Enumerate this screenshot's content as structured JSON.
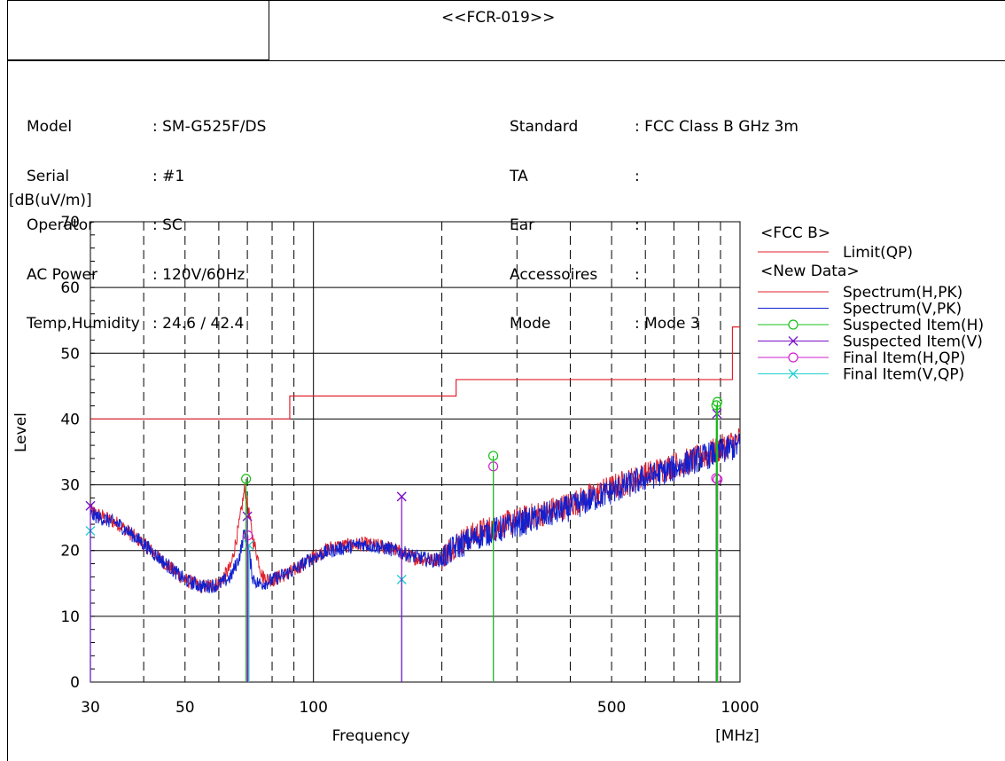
{
  "report_id": "<<FCR-019>>",
  "info_left": [
    {
      "label": "Model",
      "value": ": SM-G525F/DS"
    },
    {
      "label": "Serial",
      "value": ": #1"
    },
    {
      "label": "Operator",
      "value": ": SC"
    },
    {
      "label": "AC Power",
      "value": ": 120V/60Hz"
    },
    {
      "label": "Temp,Humidity",
      "value": ": 24.6 / 42.4"
    }
  ],
  "info_right": [
    {
      "label": "Standard",
      "value": ": FCC Class B GHz 3m"
    },
    {
      "label": "TA",
      "value": ":"
    },
    {
      "label": "Ear",
      "value": ":"
    },
    {
      "label": "Accessoires",
      "value": ":"
    },
    {
      "label": "Mode",
      "value": ": Mode 3"
    }
  ],
  "chart_data": {
    "type": "line",
    "xlabel": "Frequency",
    "xunit": "[MHz]",
    "ylabel": "Level",
    "yunit": "[dB(uV/m)]",
    "x_scale": "log",
    "xlim": [
      30,
      1000
    ],
    "ylim": [
      0,
      70
    ],
    "xticks": [
      30,
      50,
      100,
      500,
      1000
    ],
    "xtick_labels": [
      "30",
      "50",
      "100",
      "500",
      "1000"
    ],
    "yticks": [
      0,
      10,
      20,
      30,
      40,
      50,
      60,
      70
    ],
    "grid": true,
    "legend_position": "right",
    "legend": [
      {
        "group": "<FCC B>",
        "name": "Limit(QP)",
        "color": "#e0202b",
        "marker": "none"
      },
      {
        "group": "<New Data>",
        "name": "Spectrum(H,PK)",
        "color": "#e0202b",
        "marker": "none"
      },
      {
        "group": "<New Data>",
        "name": "Spectrum(V,PK)",
        "color": "#1020d0",
        "marker": "none"
      },
      {
        "group": "<New Data>",
        "name": "Suspected Item(H)",
        "color": "#18c018",
        "marker": "circle"
      },
      {
        "group": "<New Data>",
        "name": "Suspected Item(V)",
        "color": "#7a10c8",
        "marker": "x"
      },
      {
        "group": "<New Data>",
        "name": "Final Item(H,QP)",
        "color": "#d020d0",
        "marker": "circle"
      },
      {
        "group": "<New Data>",
        "name": "Final Item(V,QP)",
        "color": "#20d0d0",
        "marker": "x"
      }
    ],
    "limit_qp": {
      "x": [
        30,
        88,
        88,
        216,
        216,
        960,
        960,
        1000
      ],
      "y": [
        40,
        40,
        43.5,
        43.5,
        46,
        46,
        54,
        54
      ]
    },
    "spectrum_h_pk": {
      "x": [
        30,
        35,
        40,
        45,
        50,
        55,
        60,
        64,
        67,
        69,
        70.5,
        72,
        74,
        76,
        80,
        90,
        100,
        110,
        130,
        150,
        170,
        190,
        200,
        215,
        250,
        300,
        400,
        500,
        600,
        700,
        800,
        900,
        1000
      ],
      "y": [
        26,
        24,
        21,
        18,
        15.5,
        14.5,
        15,
        17.5,
        24,
        29.5,
        26,
        22,
        19,
        16,
        15.5,
        17,
        19,
        20.5,
        21,
        20.5,
        19,
        18.5,
        19,
        21,
        23,
        24.5,
        27,
        29.5,
        31.5,
        33,
        34,
        35.5,
        37
      ]
    },
    "spectrum_v_pk": {
      "x": [
        30,
        35,
        40,
        45,
        50,
        55,
        60,
        64,
        67,
        69,
        70.5,
        72,
        74,
        76,
        80,
        90,
        100,
        110,
        130,
        150,
        165,
        170,
        190,
        200,
        215,
        250,
        300,
        400,
        500,
        600,
        700,
        800,
        900,
        1000
      ],
      "y": [
        25.5,
        24,
        21,
        18,
        15.5,
        14.5,
        14.8,
        16,
        19,
        23,
        20,
        16,
        15,
        15,
        15.5,
        17,
        19,
        20,
        21,
        20.3,
        19.5,
        19.2,
        18.5,
        18.8,
        20.5,
        22.5,
        24,
        26.5,
        29,
        31,
        32.5,
        34,
        35,
        36
      ]
    },
    "suspected_h": [
      {
        "x": 69.5,
        "y": 30.9
      },
      {
        "x": 264,
        "y": 34.4
      },
      {
        "x": 880,
        "y": 42.1
      },
      {
        "x": 885,
        "y": 42.6
      }
    ],
    "suspected_v": [
      {
        "x": 30,
        "y": 26.8
      },
      {
        "x": 70,
        "y": 25.2
      },
      {
        "x": 161,
        "y": 28.2
      },
      {
        "x": 883,
        "y": 40.8
      }
    ],
    "final_h_qp": [
      {
        "x": 70.2,
        "y": 22.3
      },
      {
        "x": 264,
        "y": 32.8
      },
      {
        "x": 879,
        "y": 31.0
      },
      {
        "x": 886,
        "y": 30.8
      }
    ],
    "final_v_qp": [
      {
        "x": 30,
        "y": 23.0
      },
      {
        "x": 70.6,
        "y": 20.8
      },
      {
        "x": 161,
        "y": 15.6
      }
    ]
  }
}
